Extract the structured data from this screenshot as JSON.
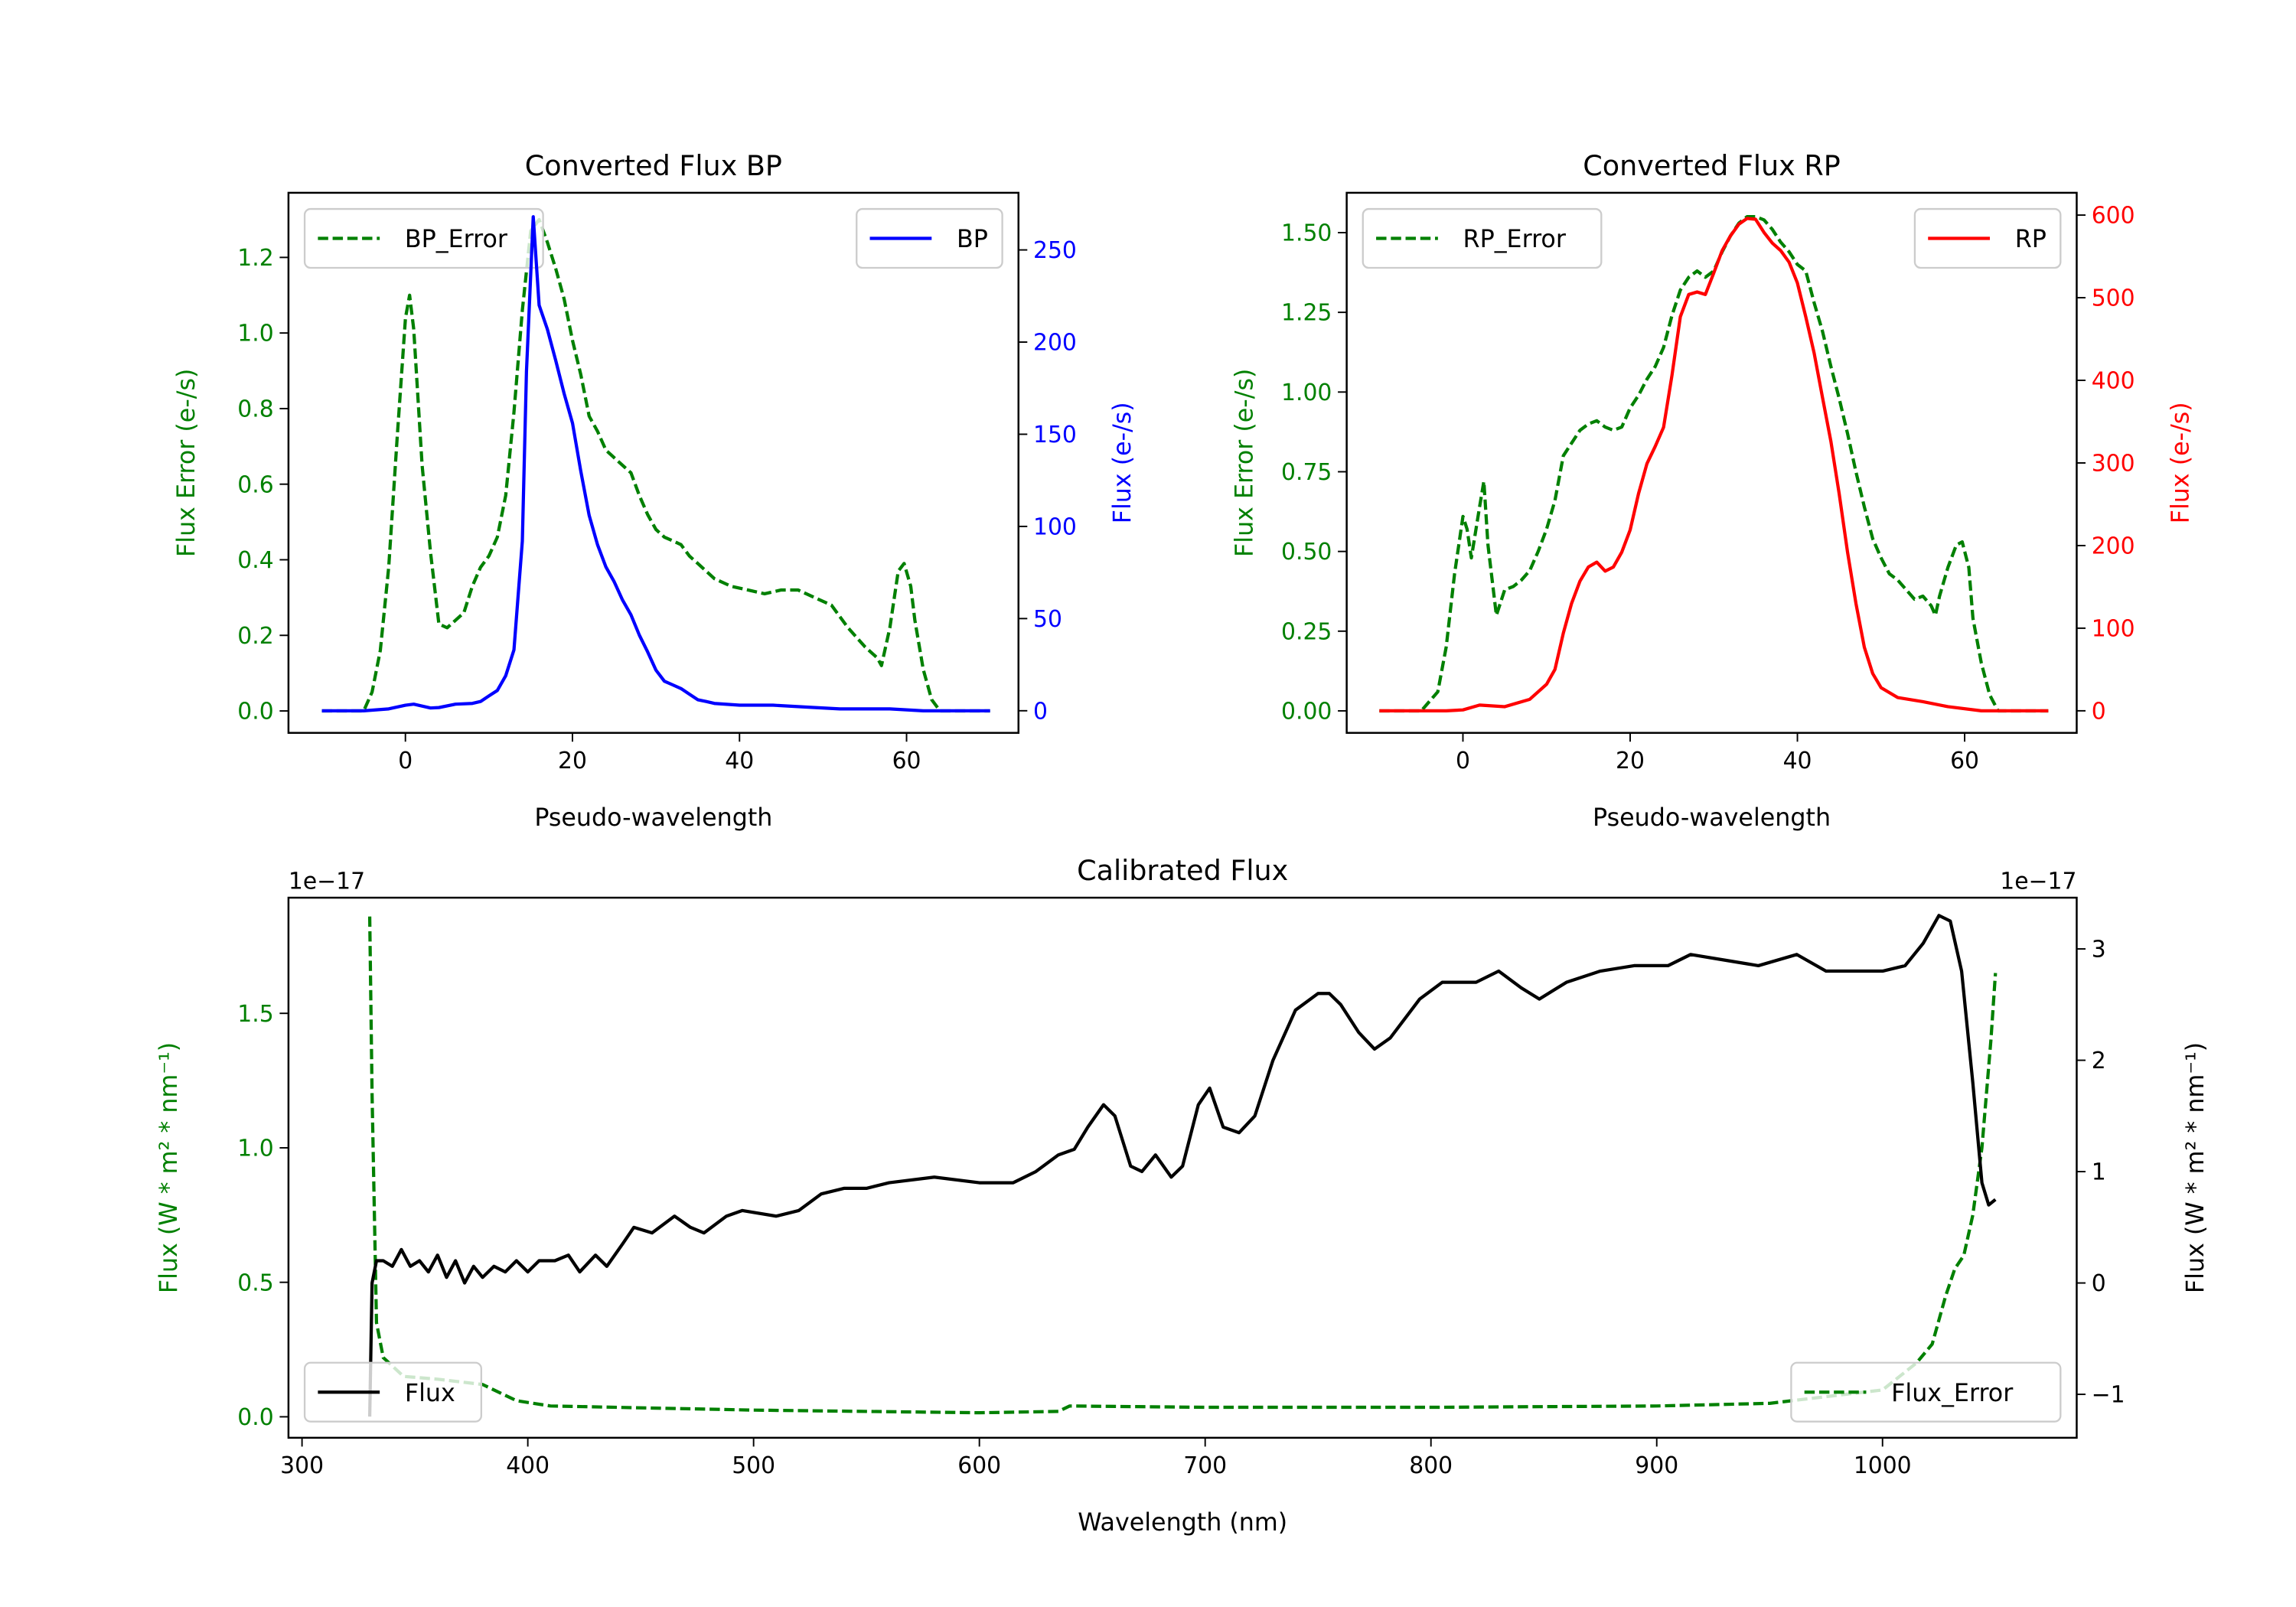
{
  "chart_data": [
    {
      "type": "line",
      "title": "Converted Flux BP",
      "xlabel": "Pseudo-wavelength",
      "ylabel_left": "Flux Error (e-/s)",
      "ylabel_right": "Flux (e-/s)",
      "xlim": [
        -14,
        73.4
      ],
      "ylim_left": [
        -0.058,
        1.371
      ],
      "ylim_right": [
        -12,
        281
      ],
      "xticks": [
        0,
        20,
        40,
        60
      ],
      "xtick_labels": [
        "0",
        "20",
        "40",
        "60"
      ],
      "yticks_left": [
        0,
        0.2,
        0.4,
        0.6,
        0.8,
        1.0,
        1.2
      ],
      "ytick_labels_left": [
        "0.0",
        "0.2",
        "0.4",
        "0.6",
        "0.8",
        "1.0",
        "1.2"
      ],
      "yticks_right": [
        0,
        50,
        100,
        150,
        200,
        250
      ],
      "ytick_labels_right": [
        "0",
        "50",
        "100",
        "150",
        "200",
        "250"
      ],
      "left_color": "#008000",
      "right_color": "#0000ff",
      "offset_left": "",
      "offset_right": "",
      "series": [
        {
          "name": "BP_Error",
          "axis": "left",
          "dashed": true,
          "color": "#008000",
          "legend": "upper-left",
          "x": [
            -10,
            -5,
            -4,
            -3,
            -2,
            -1,
            0,
            0.5,
            1,
            2,
            3,
            4,
            5,
            6,
            7,
            8,
            9,
            10,
            11,
            12,
            13,
            14,
            15,
            16,
            17,
            18,
            19,
            20,
            21,
            22,
            23,
            24,
            25,
            26,
            27,
            28,
            29,
            30,
            31,
            32,
            33,
            34,
            35,
            37,
            39,
            41,
            43,
            45,
            47,
            49,
            51,
            53,
            55,
            56.5,
            57,
            58,
            59,
            59.7,
            60.5,
            61,
            62,
            63,
            64,
            70
          ],
          "y": [
            0,
            0,
            0.05,
            0.16,
            0.38,
            0.72,
            1.04,
            1.1,
            1.01,
            0.65,
            0.42,
            0.23,
            0.22,
            0.24,
            0.26,
            0.33,
            0.38,
            0.41,
            0.46,
            0.57,
            0.79,
            1.06,
            1.27,
            1.3,
            1.24,
            1.17,
            1.09,
            0.98,
            0.89,
            0.78,
            0.74,
            0.69,
            0.67,
            0.65,
            0.63,
            0.57,
            0.52,
            0.48,
            0.46,
            0.45,
            0.44,
            0.41,
            0.39,
            0.35,
            0.33,
            0.32,
            0.31,
            0.32,
            0.32,
            0.3,
            0.28,
            0.22,
            0.17,
            0.14,
            0.12,
            0.22,
            0.37,
            0.39,
            0.33,
            0.24,
            0.11,
            0.03,
            0,
            0
          ]
        },
        {
          "name": "BP",
          "axis": "right",
          "dashed": false,
          "color": "#0000ff",
          "legend": "upper-right",
          "x": [
            -10,
            -5,
            -2,
            0,
            1,
            3,
            4,
            6,
            8,
            9,
            10,
            11,
            12,
            13,
            14,
            14.5,
            15.3,
            16,
            17,
            18,
            19,
            20,
            21,
            22,
            23,
            24,
            25,
            26,
            27,
            28,
            29,
            30,
            31,
            32,
            33,
            34,
            35,
            36,
            37,
            40,
            44,
            48,
            52,
            58,
            62,
            70
          ],
          "y": [
            0,
            0,
            1,
            3,
            3.6,
            1.5,
            1.7,
            3.6,
            4,
            5,
            8,
            11,
            19,
            33,
            92,
            184,
            268,
            220,
            207,
            190,
            172,
            156,
            130,
            106,
            90,
            78,
            70,
            60,
            52,
            41,
            32,
            22,
            16,
            14,
            12,
            9,
            6,
            5,
            4,
            3,
            3,
            2,
            1,
            1,
            0,
            0
          ]
        }
      ]
    },
    {
      "type": "line",
      "title": "Converted Flux RP",
      "xlabel": "Pseudo-wavelength",
      "ylabel_left": "Flux Error (e-/s)",
      "ylabel_right": "Flux (e-/s)",
      "xlim": [
        -13.9,
        73.4
      ],
      "ylim_left": [
        -0.069,
        1.625
      ],
      "ylim_right": [
        -26.7,
        627
      ],
      "xticks": [
        0,
        20,
        40,
        60
      ],
      "xtick_labels": [
        "0",
        "20",
        "40",
        "60"
      ],
      "yticks_left": [
        0,
        0.25,
        0.5,
        0.75,
        1.0,
        1.25,
        1.5
      ],
      "ytick_labels_left": [
        "0.00",
        "0.25",
        "0.50",
        "0.75",
        "1.00",
        "1.25",
        "1.50"
      ],
      "yticks_right": [
        0,
        100,
        200,
        300,
        400,
        500,
        600
      ],
      "ytick_labels_right": [
        "0",
        "100",
        "200",
        "300",
        "400",
        "500",
        "600"
      ],
      "left_color": "#008000",
      "right_color": "#ff0000",
      "offset_left": "",
      "offset_right": "",
      "series": [
        {
          "name": "RP_Error",
          "axis": "left",
          "dashed": true,
          "color": "#008000",
          "legend": "upper-left",
          "x": [
            -10,
            -5,
            -3,
            -2,
            -1,
            0,
            0.5,
            1,
            2,
            2.5,
            3,
            4,
            5,
            6,
            7,
            8,
            9,
            10,
            11,
            12,
            13,
            14,
            15,
            16,
            17,
            18,
            19,
            20,
            21,
            22,
            23,
            24,
            25,
            26,
            27,
            28,
            29,
            30,
            31,
            32,
            33,
            34,
            35,
            36,
            37,
            38,
            39,
            40,
            41,
            42,
            43,
            44,
            45,
            46,
            47,
            48,
            49,
            50,
            51,
            52,
            53,
            54,
            55,
            56,
            56.5,
            57,
            58,
            59,
            59.7,
            60.5,
            61,
            62,
            63,
            64,
            70
          ],
          "y": [
            0,
            0,
            0.06,
            0.2,
            0.43,
            0.61,
            0.57,
            0.48,
            0.64,
            0.72,
            0.52,
            0.3,
            0.38,
            0.39,
            0.41,
            0.44,
            0.5,
            0.57,
            0.66,
            0.8,
            0.84,
            0.88,
            0.9,
            0.91,
            0.89,
            0.88,
            0.89,
            0.95,
            0.99,
            1.04,
            1.08,
            1.14,
            1.24,
            1.32,
            1.36,
            1.38,
            1.36,
            1.38,
            1.44,
            1.49,
            1.53,
            1.55,
            1.55,
            1.54,
            1.51,
            1.47,
            1.44,
            1.4,
            1.38,
            1.28,
            1.19,
            1.08,
            0.98,
            0.87,
            0.75,
            0.64,
            0.54,
            0.48,
            0.43,
            0.41,
            0.38,
            0.35,
            0.36,
            0.33,
            0.3,
            0.36,
            0.45,
            0.52,
            0.53,
            0.45,
            0.29,
            0.15,
            0.05,
            0,
            0
          ]
        },
        {
          "name": "RP",
          "axis": "right",
          "dashed": false,
          "color": "#ff0000",
          "legend": "upper-right",
          "x": [
            -10,
            -2,
            0,
            2,
            5,
            8,
            10,
            11,
            12,
            13,
            14,
            15,
            16,
            17,
            18,
            19,
            20,
            21,
            22,
            23,
            24,
            25,
            26,
            27,
            28,
            29,
            30,
            31,
            32,
            33,
            34,
            35,
            36,
            37,
            38,
            39,
            40,
            41,
            42,
            43,
            44,
            45,
            46,
            47,
            48,
            49,
            50,
            52,
            55,
            58,
            62,
            70
          ],
          "y": [
            0,
            0,
            1,
            7,
            5,
            14,
            32,
            50,
            94,
            130,
            157,
            174,
            180,
            169,
            174,
            192,
            219,
            263,
            299,
            320,
            343,
            406,
            477,
            504,
            507,
            504,
            530,
            557,
            575,
            589,
            596,
            595,
            579,
            566,
            557,
            543,
            518,
            477,
            433,
            379,
            326,
            263,
            192,
            130,
            77,
            45,
            28,
            16,
            11,
            5,
            0,
            0
          ]
        }
      ]
    },
    {
      "type": "line",
      "title": "Calibrated Flux",
      "xlabel": "Wavelength (nm)",
      "ylabel_left": "Flux (W * m² * nm⁻¹)",
      "ylabel_right": "Flux (W * m² * nm⁻¹)",
      "xlim": [
        294,
        1086
      ],
      "ylim_left": [
        -0.078,
        1.93
      ],
      "ylim_right": [
        -1.39,
        3.46
      ],
      "xticks": [
        300,
        400,
        500,
        600,
        700,
        800,
        900,
        1000
      ],
      "xtick_labels": [
        "300",
        "400",
        "500",
        "600",
        "700",
        "800",
        "900",
        "1000"
      ],
      "yticks_left": [
        0,
        0.5,
        1.0,
        1.5
      ],
      "ytick_labels_left": [
        "0.0",
        "0.5",
        "1.0",
        "1.5"
      ],
      "yticks_right": [
        -1,
        0,
        1,
        2,
        3
      ],
      "ytick_labels_right": [
        "−1",
        "0",
        "1",
        "2",
        "3"
      ],
      "left_color": "#008000",
      "right_color": "#000000",
      "offset_left": "1e−17",
      "offset_right": "1e−17",
      "series": [
        {
          "name": "Flux_Error",
          "axis": "left",
          "dashed": true,
          "color": "#008000",
          "legend": "lower-right",
          "x": [
            330,
            331,
            333,
            336,
            345,
            360,
            380,
            395,
            410,
            500,
            600,
            635,
            640,
            700,
            800,
            900,
            950,
            1000,
            1015,
            1022,
            1028,
            1032,
            1036,
            1040,
            1044,
            1048,
            1050
          ],
          "y": [
            1.86,
            1.2,
            0.35,
            0.22,
            0.15,
            0.14,
            0.12,
            0.06,
            0.04,
            0.025,
            0.015,
            0.02,
            0.04,
            0.035,
            0.035,
            0.04,
            0.05,
            0.1,
            0.2,
            0.27,
            0.45,
            0.55,
            0.6,
            0.75,
            1.0,
            1.4,
            1.65
          ]
        },
        {
          "name": "Flux",
          "axis": "right",
          "dashed": false,
          "color": "#000000",
          "legend": "lower-left",
          "x": [
            330,
            331,
            333,
            336,
            340,
            344,
            348,
            352,
            356,
            360,
            364,
            368,
            372,
            376,
            380,
            385,
            390,
            395,
            400,
            405,
            412,
            418,
            423,
            430,
            435,
            442,
            447,
            455,
            465,
            472,
            478,
            488,
            495,
            510,
            520,
            530,
            540,
            550,
            560,
            580,
            600,
            615,
            625,
            635,
            642,
            648,
            655,
            660,
            667,
            672,
            678,
            685,
            690,
            697,
            702,
            708,
            715,
            722,
            730,
            740,
            750,
            755,
            760,
            768,
            775,
            782,
            795,
            805,
            820,
            830,
            840,
            848,
            860,
            875,
            890,
            905,
            915,
            930,
            945,
            962,
            975,
            990,
            1000,
            1010,
            1018,
            1025,
            1030,
            1035,
            1040,
            1044,
            1047,
            1050
          ],
          "y": [
            -1.2,
            0,
            0.2,
            0.2,
            0.15,
            0.3,
            0.15,
            0.2,
            0.1,
            0.25,
            0.05,
            0.2,
            0,
            0.15,
            0.05,
            0.15,
            0.1,
            0.2,
            0.1,
            0.2,
            0.2,
            0.25,
            0.1,
            0.25,
            0.15,
            0.35,
            0.5,
            0.45,
            0.6,
            0.5,
            0.45,
            0.6,
            0.65,
            0.6,
            0.65,
            0.8,
            0.85,
            0.85,
            0.9,
            0.95,
            0.9,
            0.9,
            1.0,
            1.15,
            1.2,
            1.4,
            1.6,
            1.5,
            1.05,
            1.0,
            1.15,
            0.95,
            1.05,
            1.6,
            1.75,
            1.4,
            1.35,
            1.5,
            2.0,
            2.45,
            2.6,
            2.6,
            2.5,
            2.25,
            2.1,
            2.2,
            2.55,
            2.7,
            2.7,
            2.8,
            2.65,
            2.55,
            2.7,
            2.8,
            2.85,
            2.85,
            2.95,
            2.9,
            2.85,
            2.95,
            2.8,
            2.8,
            2.8,
            2.85,
            3.05,
            3.3,
            3.25,
            2.8,
            1.8,
            0.9,
            0.7,
            0.75
          ]
        }
      ]
    }
  ]
}
